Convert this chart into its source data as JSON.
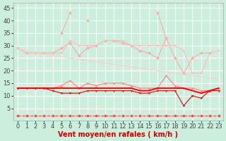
{
  "x": [
    0,
    1,
    2,
    3,
    4,
    5,
    6,
    7,
    8,
    9,
    10,
    11,
    12,
    13,
    14,
    15,
    16,
    17,
    18,
    19,
    20,
    21,
    22,
    23
  ],
  "background_color": "#cceedd",
  "grid_color": "#ffffff",
  "xlabel": "Vent moyen/en rafales ( km/h )",
  "xlabel_fontsize": 7,
  "xlabel_color": "#cc0000",
  "tick_fontsize": 6,
  "xlim": [
    -0.5,
    23.5
  ],
  "ylim": [
    0,
    47
  ],
  "yticks": [
    5,
    10,
    15,
    20,
    25,
    30,
    35,
    40,
    45
  ],
  "xticks": [
    0,
    1,
    2,
    3,
    4,
    5,
    6,
    7,
    8,
    9,
    10,
    11,
    12,
    13,
    14,
    15,
    16,
    17,
    18,
    19,
    20,
    21,
    22,
    23
  ],
  "series": [
    {
      "name": "rafales_spiky",
      "color": "#ffaaaa",
      "linewidth": 0.8,
      "marker": "D",
      "markersize": 2.0,
      "linestyle": "-",
      "values": [
        null,
        null,
        null,
        null,
        null,
        35,
        43,
        null,
        40,
        null,
        null,
        null,
        null,
        null,
        null,
        null,
        43,
        33,
        null,
        null,
        null,
        null,
        null,
        null
      ]
    },
    {
      "name": "rafales_main",
      "color": "#ffaaaa",
      "linewidth": 0.8,
      "marker": "D",
      "markersize": 2.0,
      "linestyle": "-",
      "values": [
        29,
        27,
        27,
        27,
        27,
        29,
        31,
        26,
        29,
        30,
        32,
        32,
        31,
        30,
        28,
        27,
        25,
        33,
        25,
        19,
        25,
        27,
        27,
        null
      ]
    },
    {
      "name": "vent_max_flat",
      "color": "#ffbbbb",
      "linewidth": 0.8,
      "marker": "s",
      "markersize": 1.8,
      "linestyle": "-",
      "values": [
        29,
        27,
        27,
        27,
        27,
        27,
        32,
        30,
        30,
        30,
        32,
        32,
        32,
        30,
        30,
        30,
        30,
        30,
        30,
        28,
        19,
        19,
        27,
        28
      ]
    },
    {
      "name": "wind_declining",
      "color": "#ffcccc",
      "linewidth": 0.8,
      "marker": null,
      "markersize": 0,
      "linestyle": "-",
      "values": [
        29,
        28,
        27,
        26.5,
        26,
        25.5,
        25,
        24.5,
        24,
        23.5,
        23,
        22.5,
        22,
        21.5,
        21,
        20.5,
        20,
        19.5,
        19,
        18.5,
        18,
        17.5,
        17,
        17
      ]
    },
    {
      "name": "rafales_upper",
      "color": "#ff8888",
      "linewidth": 0.9,
      "marker": "^",
      "markersize": 2.0,
      "linestyle": "-",
      "values": [
        13,
        13,
        13,
        13,
        13,
        14,
        16,
        13,
        15,
        14,
        15,
        15,
        15,
        14,
        13,
        13,
        13,
        18,
        14,
        13,
        13,
        12,
        12,
        13
      ]
    },
    {
      "name": "vent_lower",
      "color": "#cc2222",
      "linewidth": 0.9,
      "marker": "v",
      "markersize": 2.0,
      "linestyle": "-",
      "values": [
        13,
        13,
        13,
        13,
        12,
        11,
        11,
        11,
        12,
        12,
        12,
        12,
        12,
        12,
        11,
        11,
        12,
        12,
        12,
        6,
        10,
        9,
        12,
        12
      ]
    },
    {
      "name": "vent_moy_flat",
      "color": "#ff0000",
      "linewidth": 1.4,
      "marker": null,
      "markersize": 0,
      "linestyle": "-",
      "values": [
        13,
        13,
        13,
        13,
        13,
        13,
        13,
        13,
        13,
        13,
        13,
        13,
        13,
        13,
        12,
        12,
        13,
        13,
        13,
        13,
        12,
        11,
        12,
        13
      ]
    },
    {
      "name": "dashed_bottom",
      "color": "#ff4444",
      "linewidth": 0.8,
      "marker": "D",
      "markersize": 2.0,
      "linestyle": "--",
      "values": [
        2,
        2,
        2,
        2,
        2,
        2,
        2,
        2,
        2,
        2,
        2,
        2,
        2,
        2,
        2,
        2,
        2,
        2,
        2,
        2,
        2,
        2,
        2,
        2
      ]
    }
  ]
}
